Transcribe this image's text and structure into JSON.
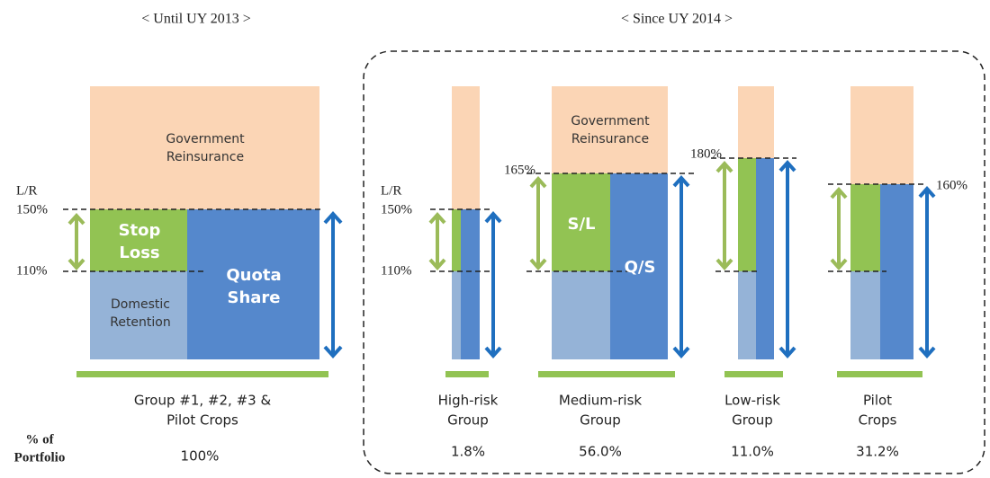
{
  "left": {
    "heading": "< Until UY 2013 >",
    "axis_label": "L/R",
    "levels": [
      "150%",
      "110%"
    ],
    "layers": {
      "government": [
        "Government",
        "Reinsurance"
      ],
      "stop_loss": [
        "Stop",
        "Loss"
      ],
      "quota_share": [
        "Quota",
        "Share"
      ],
      "retention": [
        "Domestic",
        "Retention"
      ]
    },
    "group": [
      "Group #1, #2, #3 &",
      "Pilot Crops"
    ],
    "share": "100%"
  },
  "right": {
    "heading": "< Since UY 2014 >",
    "axis_label": "L/R",
    "levels": [
      "150%",
      "110%"
    ],
    "layers": {
      "government": [
        "Government",
        "Reinsurance"
      ],
      "stop_loss": "S/L",
      "quota_share": "Q/S"
    },
    "groups": [
      {
        "name": [
          "High-risk",
          "Group"
        ],
        "share": "1.8%"
      },
      {
        "name": [
          "Medium-risk",
          "Group"
        ],
        "share": "56.0%",
        "upper_level": "165%"
      },
      {
        "name": [
          "Low-risk",
          "Group"
        ],
        "share": "11.0%",
        "upper_level": "180%"
      },
      {
        "name": [
          "Pilot",
          "Crops"
        ],
        "share": "31.2%",
        "upper_level": "160%"
      }
    ]
  },
  "portfolio_label": [
    "% of",
    "Portfolio"
  ]
}
